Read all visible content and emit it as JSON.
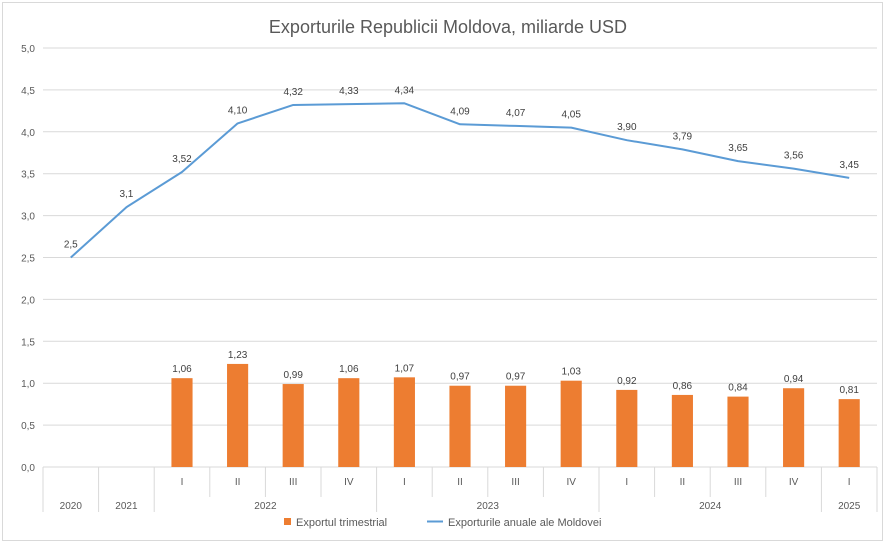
{
  "chart_data": {
    "type": "bar+line",
    "title": "Exporturile Republicii Moldova, miliarde USD",
    "ylim": [
      0,
      5
    ],
    "ytick_step": 0.5,
    "ytick_labels": [
      "0,0",
      "0,5",
      "1,0",
      "1,5",
      "2,0",
      "2,5",
      "3,0",
      "3,5",
      "4,0",
      "4,5",
      "5,0"
    ],
    "categories": [
      "",
      "",
      "I",
      "II",
      "III",
      "IV",
      "I",
      "II",
      "III",
      "IV",
      "I",
      "II",
      "III",
      "IV",
      "I"
    ],
    "year_groups": [
      {
        "label": "2020",
        "span": 1
      },
      {
        "label": "2021",
        "span": 1
      },
      {
        "label": "2022",
        "span": 4
      },
      {
        "label": "2023",
        "span": 4
      },
      {
        "label": "2024",
        "span": 4
      },
      {
        "label": "2025",
        "span": 1
      }
    ],
    "series": [
      {
        "name": "Exportul trimestrial",
        "type": "bar",
        "color": "#ed7d31",
        "values": [
          null,
          null,
          1.06,
          1.23,
          0.99,
          1.06,
          1.07,
          0.97,
          0.97,
          1.03,
          0.92,
          0.86,
          0.84,
          0.94,
          0.81
        ],
        "labels": [
          "",
          "",
          "1,06",
          "1,23",
          "0,99",
          "1,06",
          "1,07",
          "0,97",
          "0,97",
          "1,03",
          "0,92",
          "0,86",
          "0,84",
          "0,94",
          "0,81"
        ]
      },
      {
        "name": "Exporturile anuale ale Moldovei",
        "type": "line",
        "color": "#5b9bd5",
        "values": [
          2.5,
          3.1,
          3.52,
          4.1,
          4.32,
          4.33,
          4.34,
          4.09,
          4.07,
          4.05,
          3.9,
          3.79,
          3.65,
          3.56,
          3.45
        ],
        "labels": [
          "2,5",
          "3,1",
          "3,52",
          "4,10",
          "4,32",
          "4,33",
          "4,34",
          "4,09",
          "4,07",
          "4,05",
          "3,90",
          "3,79",
          "3,65",
          "3,56",
          "3,45"
        ]
      }
    ],
    "legend_position": "bottom"
  }
}
